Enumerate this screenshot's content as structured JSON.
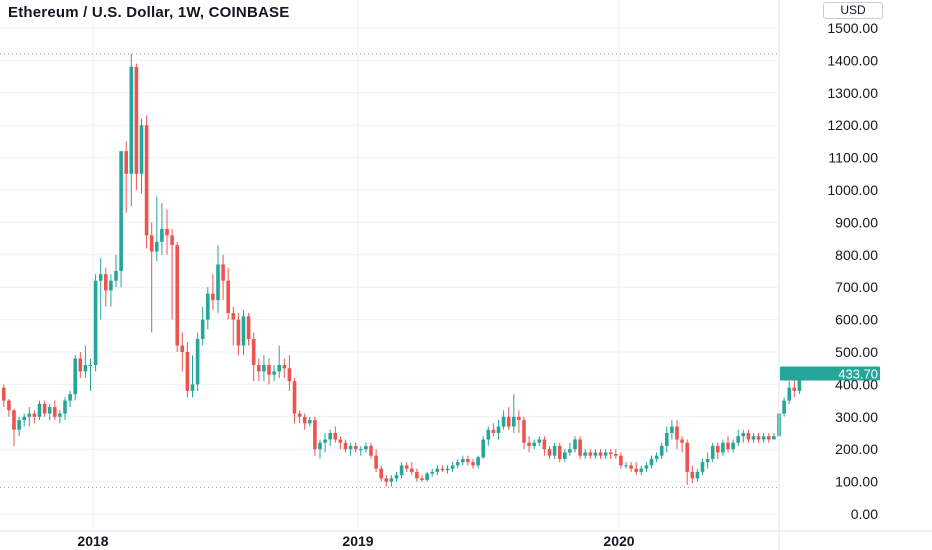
{
  "header": {
    "title": "Ethereum / U.S. Dollar, 1W, COINBASE",
    "currency": "USD"
  },
  "colors": {
    "up": "#26a69a",
    "down": "#ef5350",
    "grid": "#eef0f3",
    "axis_text": "#131722",
    "price_tag": "#26a69a"
  },
  "chart_data": {
    "type": "candlestick",
    "title": "Ethereum / U.S. Dollar, 1W, COINBASE",
    "ylabel": "USD",
    "ylim": [
      -10,
      1530
    ],
    "y_ticks": [
      "0.00",
      "100.00",
      "200.00",
      "300.00",
      "400.00",
      "500.00",
      "600.00",
      "700.00",
      "800.00",
      "900.00",
      "1000.00",
      "1100.00",
      "1200.00",
      "1300.00",
      "1400.00",
      "1500.00"
    ],
    "x_ticks": [
      "2018",
      "2019",
      "2020"
    ],
    "last_price": "433.70",
    "reference_lines": {
      "high": 1420,
      "low": 82
    },
    "grid": true,
    "series": [
      {
        "name": "",
        "values": [
          [
            390,
            400,
            330,
            350
          ],
          [
            350,
            355,
            300,
            320
          ],
          [
            320,
            325,
            210,
            260
          ],
          [
            260,
            300,
            240,
            290
          ],
          [
            290,
            310,
            270,
            300
          ],
          [
            300,
            330,
            270,
            310
          ],
          [
            310,
            320,
            280,
            300
          ],
          [
            300,
            350,
            290,
            340
          ],
          [
            340,
            350,
            300,
            310
          ],
          [
            310,
            340,
            290,
            330
          ],
          [
            330,
            350,
            290,
            300
          ],
          [
            300,
            320,
            280,
            310
          ],
          [
            310,
            360,
            290,
            350
          ],
          [
            350,
            380,
            330,
            370
          ],
          [
            370,
            490,
            350,
            480
          ],
          [
            480,
            500,
            420,
            440
          ],
          [
            440,
            520,
            420,
            460
          ],
          [
            460,
            480,
            380,
            460
          ],
          [
            460,
            740,
            440,
            720
          ],
          [
            720,
            790,
            600,
            740
          ],
          [
            740,
            760,
            640,
            690
          ],
          [
            690,
            740,
            640,
            720
          ],
          [
            720,
            800,
            700,
            750
          ],
          [
            750,
            1120,
            700,
            1120
          ],
          [
            1120,
            1150,
            930,
            1050
          ],
          [
            1050,
            1420,
            950,
            1380
          ],
          [
            1380,
            1390,
            1000,
            1050
          ],
          [
            1050,
            1220,
            990,
            1200
          ],
          [
            1200,
            1230,
            820,
            860
          ],
          [
            860,
            900,
            560,
            810
          ],
          [
            810,
            980,
            780,
            840
          ],
          [
            840,
            960,
            800,
            880
          ],
          [
            880,
            940,
            800,
            860
          ],
          [
            860,
            880,
            600,
            830
          ],
          [
            830,
            840,
            500,
            520
          ],
          [
            520,
            560,
            440,
            500
          ],
          [
            500,
            530,
            360,
            380
          ],
          [
            380,
            490,
            360,
            400
          ],
          [
            400,
            560,
            380,
            540
          ],
          [
            540,
            640,
            520,
            600
          ],
          [
            600,
            700,
            570,
            680
          ],
          [
            680,
            740,
            630,
            660
          ],
          [
            660,
            830,
            620,
            770
          ],
          [
            770,
            800,
            660,
            720
          ],
          [
            720,
            760,
            600,
            620
          ],
          [
            620,
            640,
            520,
            600
          ],
          [
            600,
            620,
            490,
            520
          ],
          [
            520,
            630,
            490,
            610
          ],
          [
            610,
            620,
            520,
            540
          ],
          [
            540,
            560,
            410,
            460
          ],
          [
            460,
            480,
            410,
            440
          ],
          [
            440,
            490,
            410,
            460
          ],
          [
            460,
            480,
            400,
            430
          ],
          [
            430,
            460,
            410,
            440
          ],
          [
            440,
            520,
            420,
            460
          ],
          [
            460,
            480,
            420,
            450
          ],
          [
            450,
            490,
            380,
            410
          ],
          [
            410,
            420,
            280,
            310
          ],
          [
            310,
            320,
            280,
            300
          ],
          [
            300,
            310,
            260,
            280
          ],
          [
            280,
            300,
            270,
            290
          ],
          [
            290,
            300,
            180,
            200
          ],
          [
            200,
            230,
            170,
            220
          ],
          [
            220,
            250,
            190,
            230
          ],
          [
            230,
            260,
            210,
            250
          ],
          [
            250,
            270,
            220,
            230
          ],
          [
            230,
            240,
            200,
            220
          ],
          [
            220,
            230,
            190,
            200
          ],
          [
            200,
            220,
            180,
            210
          ],
          [
            210,
            220,
            190,
            200
          ],
          [
            200,
            210,
            180,
            200
          ],
          [
            200,
            220,
            190,
            210
          ],
          [
            210,
            220,
            170,
            180
          ],
          [
            180,
            200,
            130,
            140
          ],
          [
            140,
            150,
            100,
            110
          ],
          [
            110,
            120,
            85,
            100
          ],
          [
            100,
            120,
            85,
            110
          ],
          [
            110,
            130,
            100,
            120
          ],
          [
            120,
            160,
            110,
            150
          ],
          [
            150,
            160,
            130,
            140
          ],
          [
            140,
            160,
            120,
            130
          ],
          [
            130,
            140,
            100,
            110
          ],
          [
            110,
            120,
            100,
            105
          ],
          [
            105,
            130,
            100,
            125
          ],
          [
            125,
            140,
            115,
            130
          ],
          [
            130,
            150,
            120,
            140
          ],
          [
            140,
            150,
            130,
            135
          ],
          [
            135,
            150,
            125,
            140
          ],
          [
            140,
            160,
            130,
            150
          ],
          [
            150,
            170,
            140,
            160
          ],
          [
            160,
            180,
            150,
            170
          ],
          [
            170,
            180,
            150,
            160
          ],
          [
            160,
            170,
            140,
            150
          ],
          [
            150,
            180,
            140,
            175
          ],
          [
            175,
            240,
            170,
            230
          ],
          [
            230,
            270,
            210,
            260
          ],
          [
            260,
            280,
            240,
            250
          ],
          [
            250,
            290,
            230,
            270
          ],
          [
            270,
            320,
            260,
            300
          ],
          [
            300,
            330,
            260,
            270
          ],
          [
            270,
            370,
            250,
            300
          ],
          [
            300,
            320,
            250,
            290
          ],
          [
            290,
            300,
            200,
            220
          ],
          [
            220,
            240,
            190,
            210
          ],
          [
            210,
            230,
            200,
            220
          ],
          [
            220,
            240,
            210,
            230
          ],
          [
            230,
            240,
            180,
            200
          ],
          [
            200,
            210,
            170,
            180
          ],
          [
            180,
            220,
            170,
            210
          ],
          [
            210,
            220,
            160,
            170
          ],
          [
            170,
            200,
            160,
            190
          ],
          [
            190,
            220,
            180,
            200
          ],
          [
            200,
            240,
            190,
            230
          ],
          [
            230,
            240,
            170,
            180
          ],
          [
            180,
            200,
            170,
            190
          ],
          [
            190,
            200,
            170,
            180
          ],
          [
            180,
            200,
            170,
            190
          ],
          [
            190,
            200,
            170,
            180
          ],
          [
            180,
            200,
            170,
            190
          ],
          [
            190,
            200,
            170,
            185
          ],
          [
            185,
            200,
            170,
            180
          ],
          [
            180,
            190,
            140,
            150
          ],
          [
            150,
            160,
            140,
            150
          ],
          [
            150,
            160,
            130,
            140
          ],
          [
            140,
            160,
            120,
            130
          ],
          [
            130,
            150,
            120,
            140
          ],
          [
            140,
            160,
            130,
            150
          ],
          [
            150,
            180,
            140,
            170
          ],
          [
            170,
            190,
            160,
            180
          ],
          [
            180,
            220,
            170,
            210
          ],
          [
            210,
            270,
            190,
            250
          ],
          [
            250,
            290,
            230,
            270
          ],
          [
            270,
            290,
            200,
            230
          ],
          [
            230,
            240,
            190,
            220
          ],
          [
            220,
            230,
            90,
            130
          ],
          [
            130,
            150,
            95,
            110
          ],
          [
            110,
            140,
            100,
            130
          ],
          [
            130,
            170,
            120,
            160
          ],
          [
            160,
            190,
            140,
            170
          ],
          [
            170,
            220,
            160,
            210
          ],
          [
            210,
            220,
            170,
            190
          ],
          [
            190,
            230,
            180,
            220
          ],
          [
            220,
            240,
            190,
            200
          ],
          [
            200,
            230,
            190,
            220
          ],
          [
            220,
            260,
            210,
            240
          ],
          [
            240,
            260,
            220,
            250
          ],
          [
            250,
            260,
            220,
            230
          ],
          [
            230,
            250,
            220,
            240
          ],
          [
            240,
            250,
            220,
            230
          ],
          [
            230,
            250,
            220,
            240
          ],
          [
            240,
            250,
            220,
            230
          ],
          [
            230,
            250,
            230,
            240
          ],
          [
            240,
            320,
            230,
            310
          ],
          [
            310,
            360,
            300,
            350
          ],
          [
            350,
            410,
            340,
            390
          ],
          [
            390,
            420,
            360,
            380
          ],
          [
            380,
            450,
            370,
            434
          ]
        ]
      }
    ]
  }
}
